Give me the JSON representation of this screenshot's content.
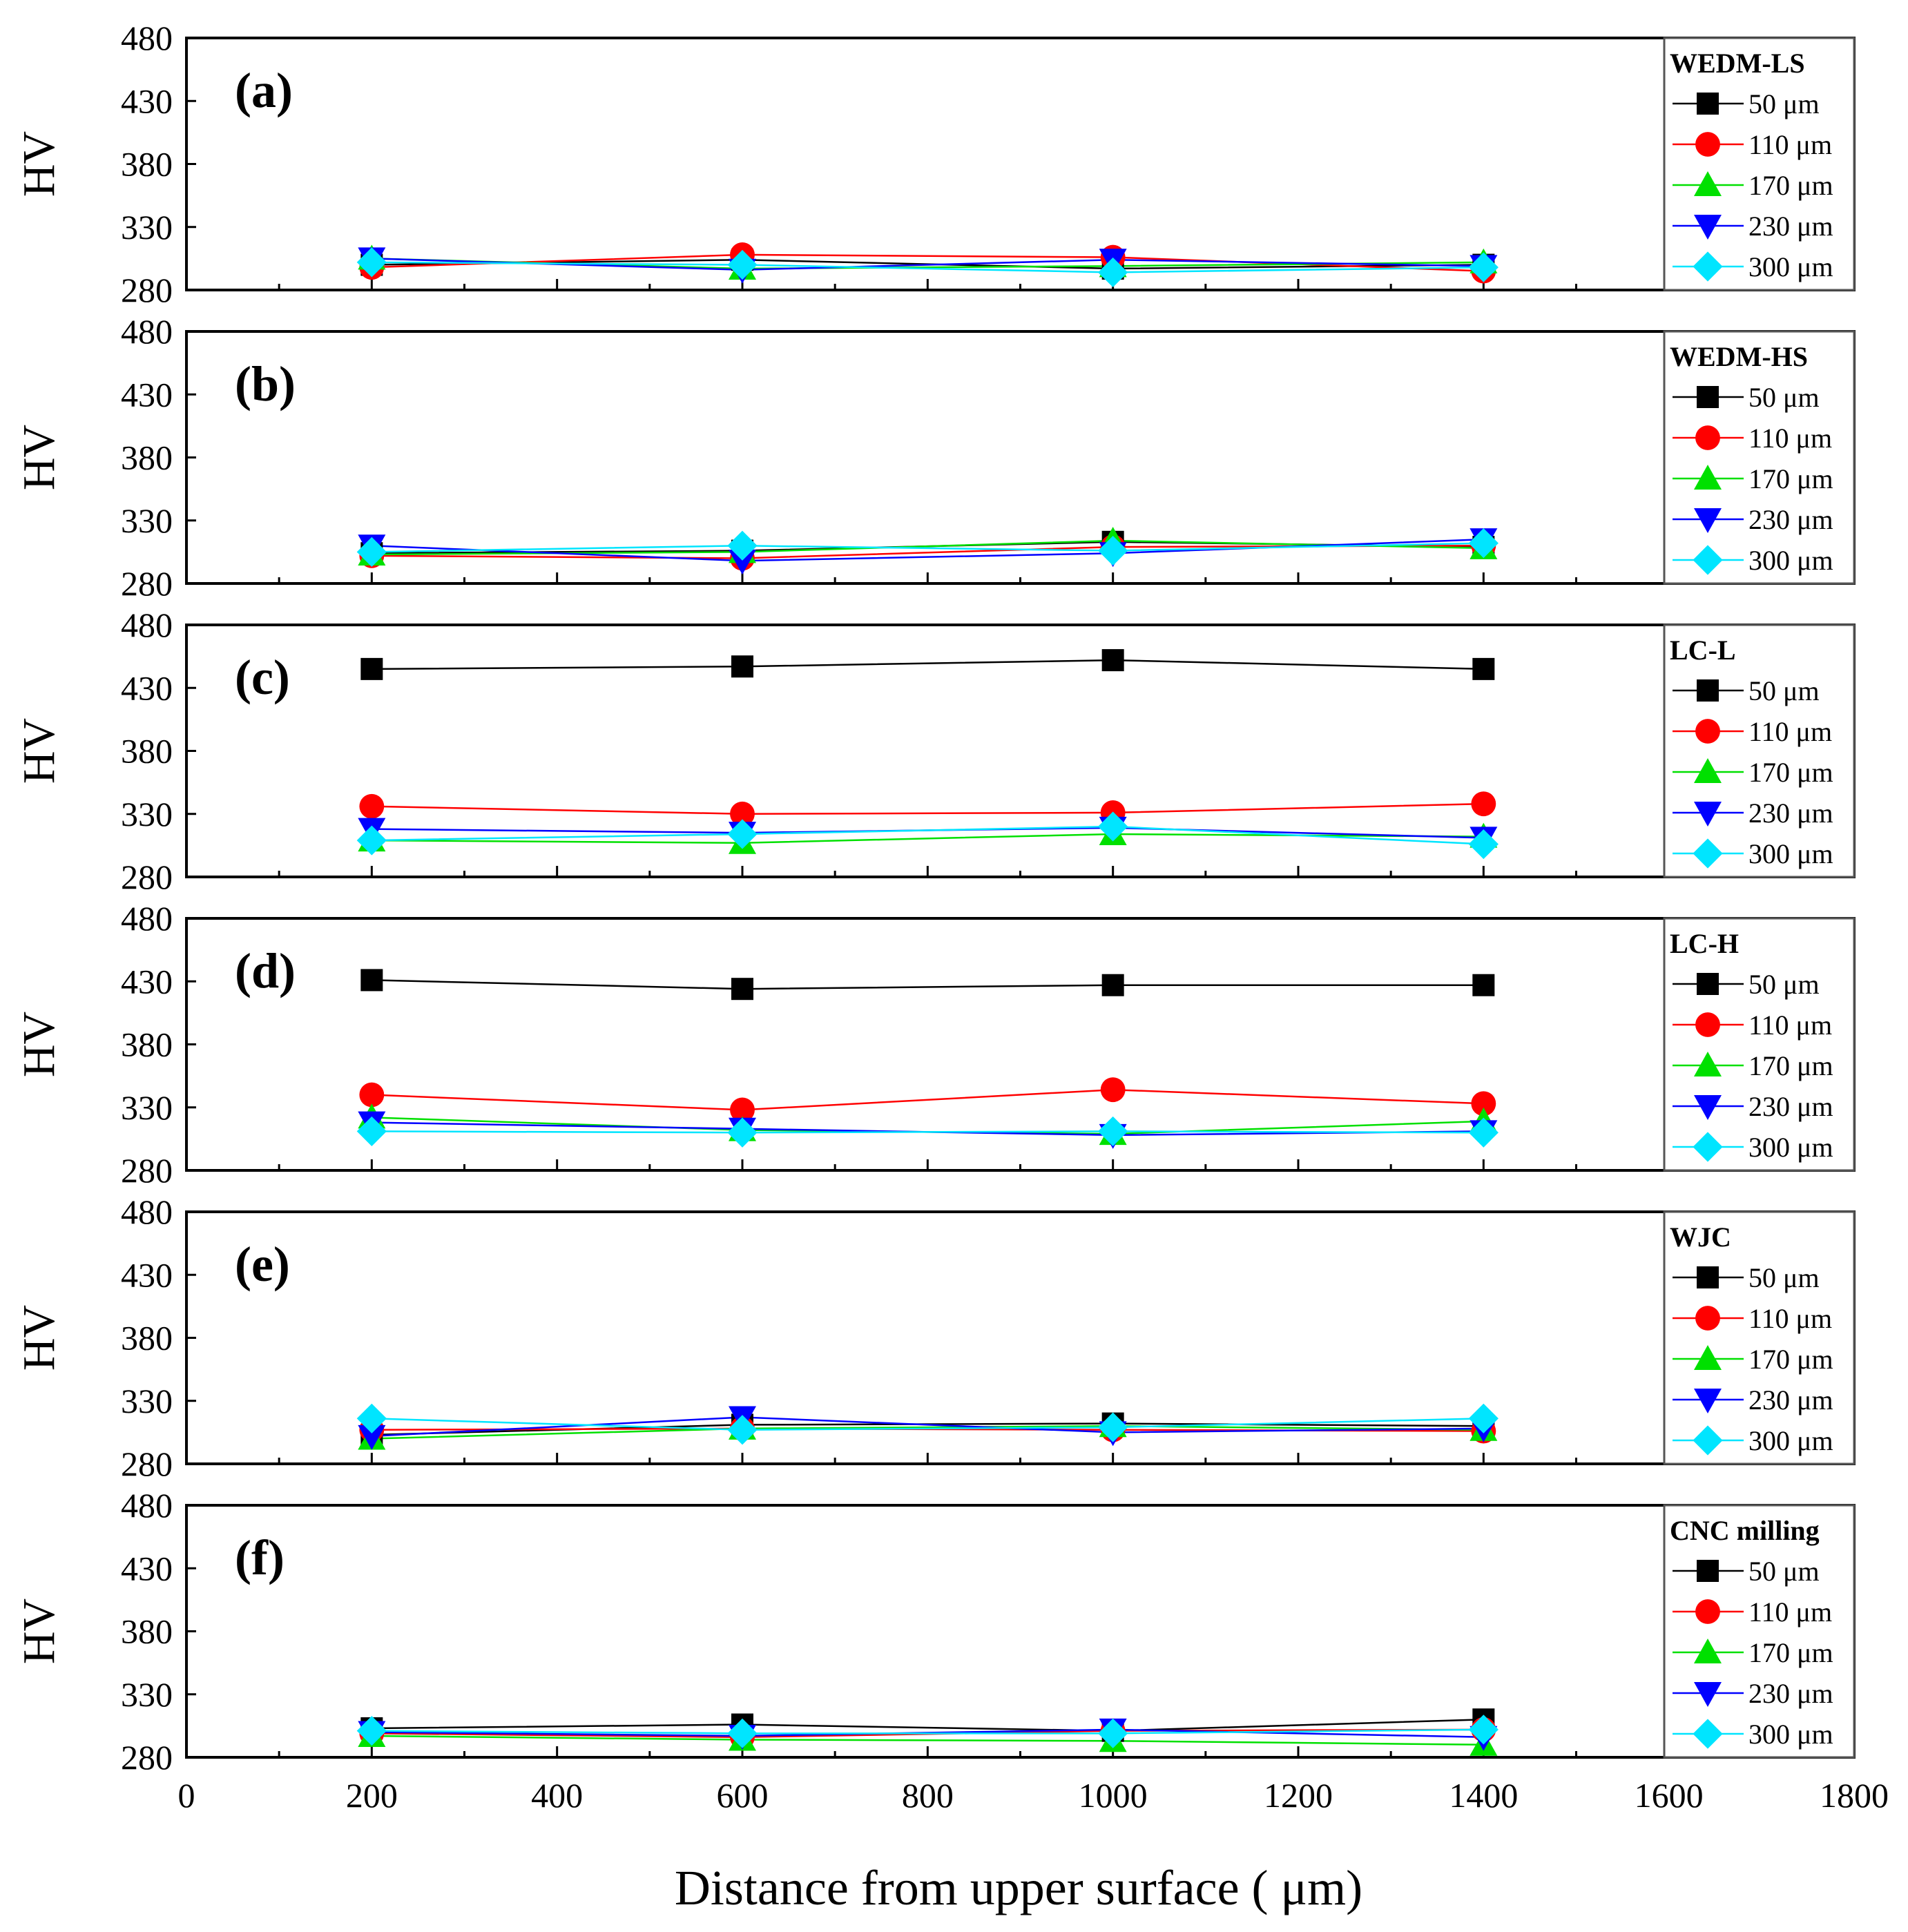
{
  "chart_data": {
    "type": "line",
    "xlabel": "Distance from upper surface ( μm)",
    "ylabel": "HV",
    "xlim": [
      0,
      1800
    ],
    "ylim": [
      280,
      480
    ],
    "xticks": [
      "0",
      "200",
      "400",
      "600",
      "800",
      "1000",
      "1200",
      "1400",
      "1600",
      "1800"
    ],
    "yticks": [
      "280",
      "330",
      "380",
      "430",
      "480"
    ],
    "x": [
      200,
      600,
      1000,
      1400
    ],
    "series_style": [
      {
        "name": "50 μm",
        "color": "#000000",
        "marker": "square"
      },
      {
        "name": "110 μm",
        "color": "#ff0000",
        "marker": "circle"
      },
      {
        "name": "170 μm",
        "color": "#00e000",
        "marker": "triangle-up"
      },
      {
        "name": "230 μm",
        "color": "#0000ff",
        "marker": "triangle-down"
      },
      {
        "name": "300 μm",
        "color": "#00e5ff",
        "marker": "diamond"
      }
    ],
    "panels": [
      {
        "label": "(a)",
        "legend_title": "WEDM-LS",
        "series": [
          {
            "name": "50 μm",
            "values": [
              300,
              304,
              297,
              300
            ]
          },
          {
            "name": "110 μm",
            "values": [
              298,
              308,
              306,
              295
            ]
          },
          {
            "name": "170 μm",
            "values": [
              305,
              297,
              299,
              302
            ]
          },
          {
            "name": "230 μm",
            "values": [
              305,
              296,
              304,
              299
            ]
          },
          {
            "name": "300 μm",
            "values": [
              302,
              300,
              294,
              298
            ]
          }
        ]
      },
      {
        "label": "(b)",
        "legend_title": "WEDM-HS",
        "series": [
          {
            "name": "50 μm",
            "values": [
              304,
              306,
              313,
              309
            ]
          },
          {
            "name": "110 μm",
            "values": [
              302,
              300,
              309,
              310
            ]
          },
          {
            "name": "170 μm",
            "values": [
              303,
              305,
              314,
              308
            ]
          },
          {
            "name": "230 μm",
            "values": [
              310,
              298,
              304,
              315
            ]
          },
          {
            "name": "300 μm",
            "values": [
              305,
              310,
              306,
              312
            ]
          }
        ]
      },
      {
        "label": "(c)",
        "legend_title": "LC-L",
        "series": [
          {
            "name": "50 μm",
            "values": [
              445,
              447,
              452,
              445
            ]
          },
          {
            "name": "110 μm",
            "values": [
              336,
              330,
              331,
              338
            ]
          },
          {
            "name": "170 μm",
            "values": [
              309,
              307,
              314,
              312
            ]
          },
          {
            "name": "230 μm",
            "values": [
              318,
              315,
              319,
              311
            ]
          },
          {
            "name": "300 μm",
            "values": [
              309,
              314,
              320,
              306
            ]
          }
        ]
      },
      {
        "label": "(d)",
        "legend_title": "LC-H",
        "series": [
          {
            "name": "50 μm",
            "values": [
              431,
              424,
              427,
              427
            ]
          },
          {
            "name": "110 μm",
            "values": [
              340,
              328,
              344,
              333
            ]
          },
          {
            "name": "170 μm",
            "values": [
              322,
              312,
              309,
              319
            ]
          },
          {
            "name": "230 μm",
            "values": [
              318,
              313,
              308,
              311
            ]
          },
          {
            "name": "300 μm",
            "values": [
              311,
              310,
              311,
              310
            ]
          }
        ]
      },
      {
        "label": "(e)",
        "legend_title": "WJC",
        "series": [
          {
            "name": "50 μm",
            "values": [
              303,
              311,
              312,
              310
            ]
          },
          {
            "name": "110 μm",
            "values": [
              307,
              308,
              307,
              306
            ]
          },
          {
            "name": "170 μm",
            "values": [
              300,
              308,
              310,
              307
            ]
          },
          {
            "name": "230 μm",
            "values": [
              302,
              317,
              305,
              308
            ]
          },
          {
            "name": "300 μm",
            "values": [
              316,
              307,
              309,
              316
            ]
          }
        ]
      },
      {
        "label": "(f)",
        "legend_title": "CNC milling",
        "series": [
          {
            "name": "50 μm",
            "values": [
              303,
              306,
              301,
              310
            ]
          },
          {
            "name": "110 μm",
            "values": [
              299,
              296,
              301,
              302
            ]
          },
          {
            "name": "170 μm",
            "values": [
              297,
              294,
              293,
              290
            ]
          },
          {
            "name": "230 μm",
            "values": [
              300,
              297,
              302,
              296
            ]
          },
          {
            "name": "300 μm",
            "values": [
              301,
              299,
              299,
              302
            ]
          }
        ]
      }
    ]
  }
}
